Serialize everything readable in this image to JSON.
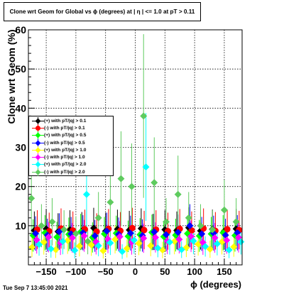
{
  "title": "Clone wrt Geom for Global vs ϕ (degrees) at |  η | <= 1.0 at pT > 0.11",
  "footer": "Tue Sep  7 13:45:00 2021",
  "chart_data": {
    "type": "scatter",
    "xlabel": "ϕ (degrees)",
    "ylabel": "Clone wrt Geom (%)",
    "xlim": [
      -180,
      180
    ],
    "ylim": [
      0,
      60
    ],
    "x_ticks": [
      -150,
      -100,
      -50,
      0,
      50,
      100,
      150
    ],
    "y_ticks": [
      10,
      20,
      30,
      40,
      50,
      60
    ],
    "grid": true,
    "legend_position": "middle-left",
    "series": [
      {
        "name": "(+) with pT/|q| > 0.1",
        "color": "#000000",
        "shape": "diamond",
        "x": [
          -170,
          -150,
          -130,
          -110,
          -90,
          -70,
          -50,
          -30,
          -10,
          10,
          30,
          50,
          70,
          90,
          110,
          130,
          150,
          170
        ],
        "y": [
          8.8,
          9.2,
          8.5,
          9.0,
          8.7,
          9.4,
          8.6,
          9.1,
          8.9,
          9.3,
          8.4,
          9.0,
          8.8,
          9.5,
          8.7,
          9.1,
          8.6,
          9.2
        ]
      },
      {
        "name": "(-) with pT/|q| > 0.1",
        "color": "#ff0000",
        "shape": "circle",
        "x": [
          -165,
          -145,
          -125,
          -105,
          -85,
          -65,
          -45,
          -25,
          -5,
          15,
          35,
          55,
          75,
          95,
          115,
          135,
          155,
          175
        ],
        "y": [
          9.0,
          8.6,
          9.3,
          8.8,
          9.1,
          8.5,
          9.2,
          8.7,
          9.4,
          8.9,
          9.0,
          8.6,
          9.2,
          8.8,
          9.3,
          8.7,
          9.1,
          8.9
        ]
      },
      {
        "name": "(+) with pT/|q| > 0.5",
        "color": "#00ff00",
        "shape": "diamond",
        "x": [
          -172,
          -152,
          -132,
          -112,
          -92,
          -72,
          -52,
          -32,
          -12,
          8,
          28,
          48,
          68,
          88,
          108,
          128,
          148,
          168
        ],
        "y": [
          7.5,
          8.2,
          7.1,
          7.8,
          8.4,
          7.0,
          7.9,
          8.1,
          7.3,
          7.7,
          8.3,
          7.2,
          7.6,
          8.0,
          7.4,
          7.9,
          8.2,
          7.5
        ]
      },
      {
        "name": "(-) with pT/|q| > 0.5",
        "color": "#0000ff",
        "shape": "diamond",
        "x": [
          -168,
          -148,
          -128,
          -108,
          -88,
          -68,
          -48,
          -28,
          -8,
          12,
          32,
          52,
          72,
          92,
          112,
          132,
          152,
          172
        ],
        "y": [
          8.0,
          7.6,
          8.5,
          7.9,
          8.2,
          7.4,
          8.6,
          7.8,
          8.1,
          7.5,
          8.4,
          7.7,
          8.3,
          10.0,
          7.9,
          8.1,
          7.6,
          8.2
        ]
      },
      {
        "name": "(+) with pT/|q| > 1.0",
        "color": "#ffff00",
        "shape": "diamond",
        "x": [
          -174,
          -154,
          -134,
          -114,
          -94,
          -74,
          -54,
          -34,
          -14,
          6,
          26,
          46,
          66,
          86,
          106,
          126,
          146,
          166
        ],
        "y": [
          4.5,
          5.8,
          3.9,
          6.2,
          4.8,
          5.1,
          3.6,
          6.5,
          4.2,
          5.5,
          4.9,
          3.8,
          6.0,
          4.4,
          5.3,
          4.0,
          5.9,
          4.6
        ]
      },
      {
        "name": "(-) with pT/|q| > 1.0",
        "color": "#ff00ff",
        "shape": "diamond",
        "x": [
          -166,
          -146,
          -126,
          -106,
          -86,
          -66,
          -46,
          -26,
          -6,
          14,
          34,
          54,
          74,
          94,
          114,
          134,
          154,
          174
        ],
        "y": [
          6.4,
          7.1,
          5.6,
          6.9,
          7.4,
          5.9,
          6.6,
          7.2,
          5.8,
          6.8,
          7.0,
          6.1,
          6.5,
          7.3,
          5.7,
          6.9,
          6.3,
          7.0
        ]
      },
      {
        "name": "(+) with pT/|q| > 2.0",
        "color": "#00ffff",
        "shape": "diamond",
        "x": [
          -162,
          -142,
          -122,
          -102,
          -82,
          -62,
          -42,
          -22,
          -2,
          18,
          38,
          58,
          78,
          98,
          118,
          138,
          158,
          178
        ],
        "y": [
          5.2,
          4.1,
          6.0,
          3.7,
          18.0,
          4.9,
          5.6,
          3.4,
          6.3,
          25.0,
          4.3,
          5.8,
          3.9,
          6.1,
          4.7,
          5.4,
          3.8,
          5.9
        ]
      },
      {
        "name": "(-) with pT/|q| > 2.0",
        "color": "#5ecb5e",
        "shape": "diamond",
        "x": [
          -175,
          -158,
          -140,
          -120,
          -100,
          -80,
          -62,
          -42,
          -24,
          -6,
          14,
          32,
          52,
          72,
          90,
          110,
          130,
          150,
          170
        ],
        "y": [
          17,
          10,
          11,
          9,
          8,
          6,
          12,
          16,
          22,
          20,
          38,
          21,
          11,
          18,
          12,
          10,
          9,
          14,
          11
        ]
      }
    ]
  }
}
